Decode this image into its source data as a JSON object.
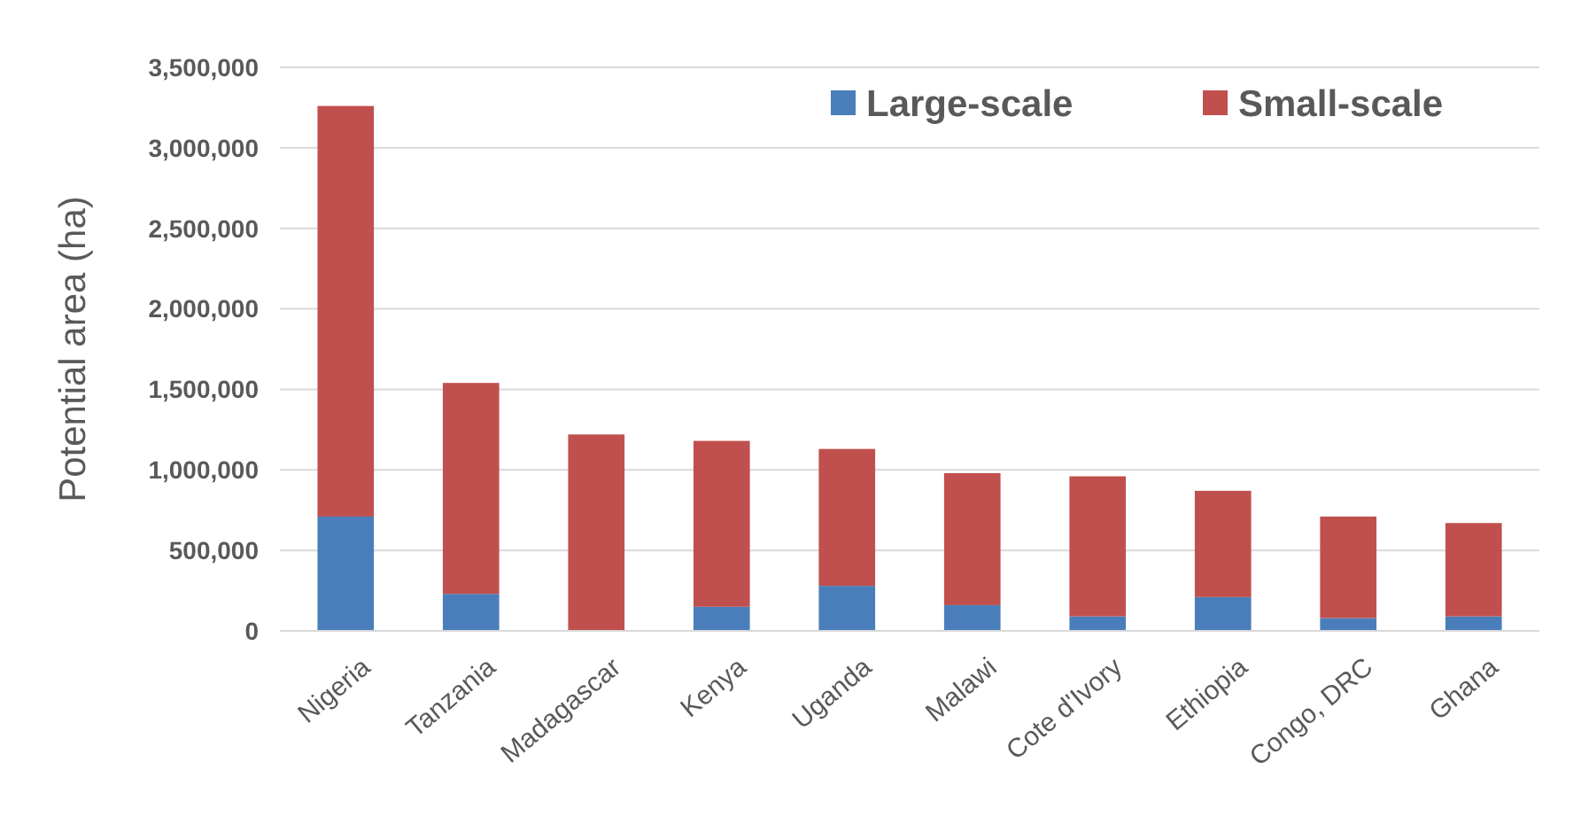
{
  "chart_data": {
    "type": "bar",
    "stacked": true,
    "ylabel": "Potential area (ha)",
    "categories": [
      "Nigeria",
      "Tanzania",
      "Madagascar",
      "Kenya",
      "Uganda",
      "Malawi",
      "Cote d'Ivory",
      "Ethiopia",
      "Congo, DRC",
      "Ghana"
    ],
    "series": [
      {
        "name": "Large-scale",
        "color": "#4a7ebb",
        "values": [
          710000,
          230000,
          0,
          150000,
          280000,
          160000,
          90000,
          210000,
          80000,
          90000
        ]
      },
      {
        "name": "Small-scale",
        "color": "#c0504d",
        "values": [
          2550000,
          1310000,
          1220000,
          1030000,
          850000,
          820000,
          870000,
          660000,
          630000,
          580000
        ]
      }
    ],
    "ylim": [
      0,
      3500000
    ],
    "yticks": [
      {
        "value": 0,
        "label": "0"
      },
      {
        "value": 500000,
        "label": "500,000"
      },
      {
        "value": 1000000,
        "label": "1,000,000"
      },
      {
        "value": 1500000,
        "label": "1,500,000"
      },
      {
        "value": 2000000,
        "label": "2,000,000"
      },
      {
        "value": 2500000,
        "label": "2,500,000"
      },
      {
        "value": 3000000,
        "label": "3,000,000"
      },
      {
        "value": 3500000,
        "label": "3,500,000"
      }
    ],
    "grid": "y",
    "legend": "top right"
  }
}
